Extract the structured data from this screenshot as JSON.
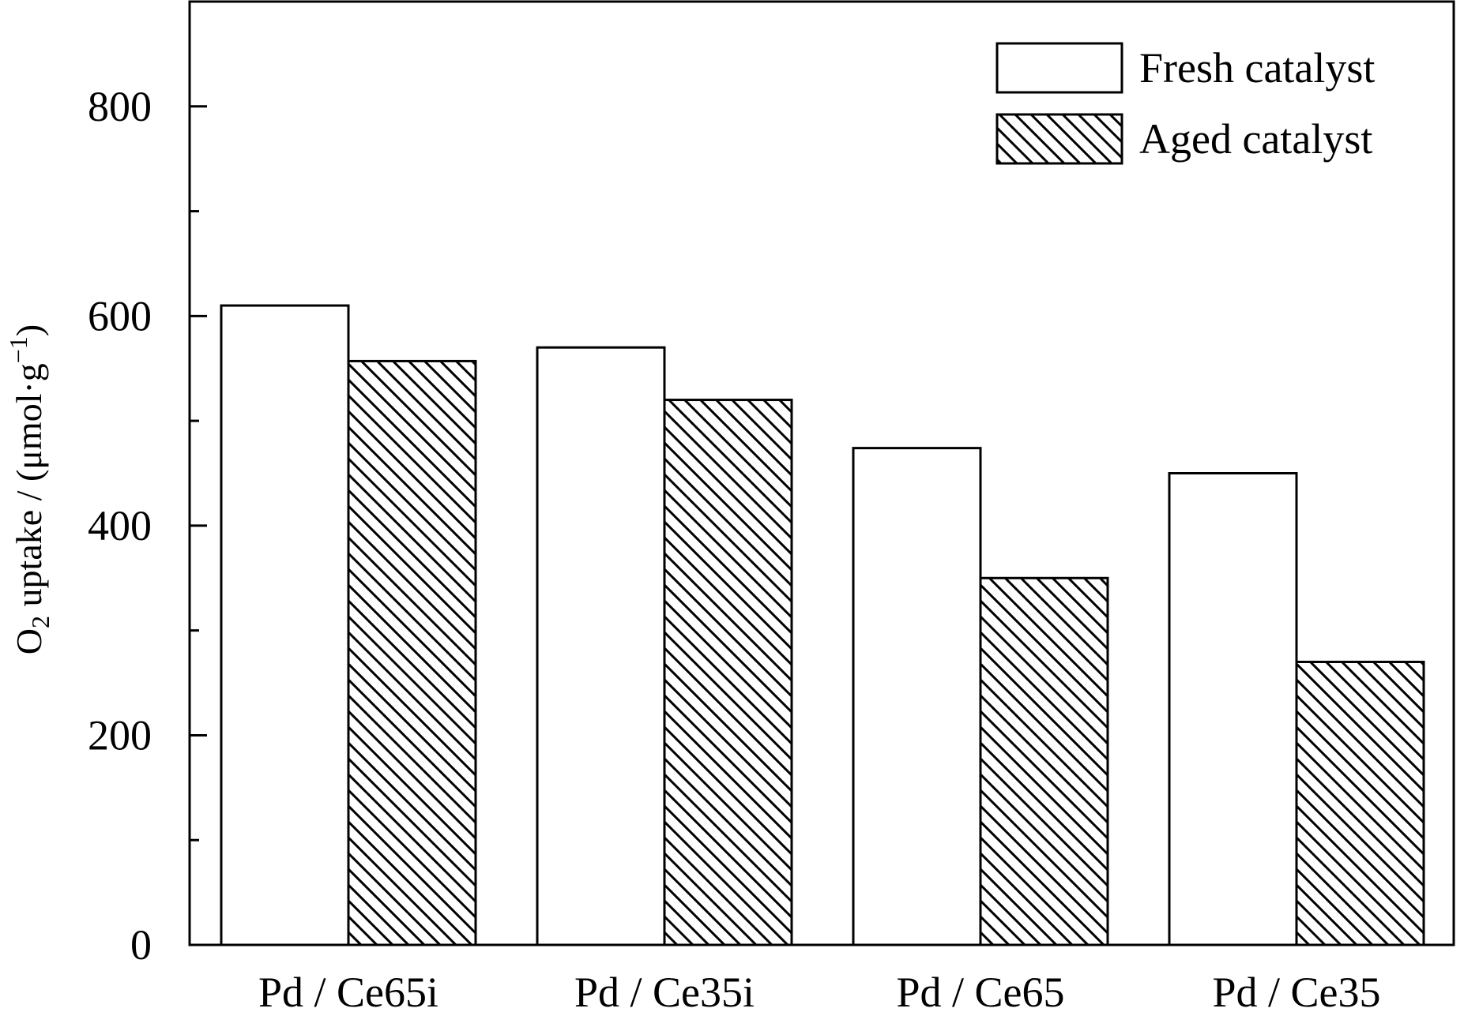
{
  "chart_data": {
    "type": "bar",
    "title": "",
    "xlabel": "",
    "ylabel": {
      "prefix": "O",
      "subscript": "2",
      "main": " uptake / (μmol·g",
      "superscript": "−1",
      "suffix": ")"
    },
    "categories": [
      "Pd / Ce65i",
      "Pd / Ce35i",
      "Pd / Ce65",
      "Pd / Ce35"
    ],
    "series": [
      {
        "name": "Fresh catalyst",
        "pattern": "none",
        "values": [
          610,
          570,
          474,
          450
        ]
      },
      {
        "name": "Aged catalyst",
        "pattern": "diagonal-hatch",
        "values": [
          557,
          520,
          350,
          270
        ]
      }
    ],
    "ylim": [
      0,
      900
    ],
    "yticks": [
      0,
      200,
      400,
      600,
      800
    ],
    "yticks_minor": [
      100,
      300,
      500,
      700
    ],
    "grid": false,
    "legend_position": "top-right",
    "colors": {
      "stroke": "#000000",
      "fill": "#ffffff"
    }
  }
}
